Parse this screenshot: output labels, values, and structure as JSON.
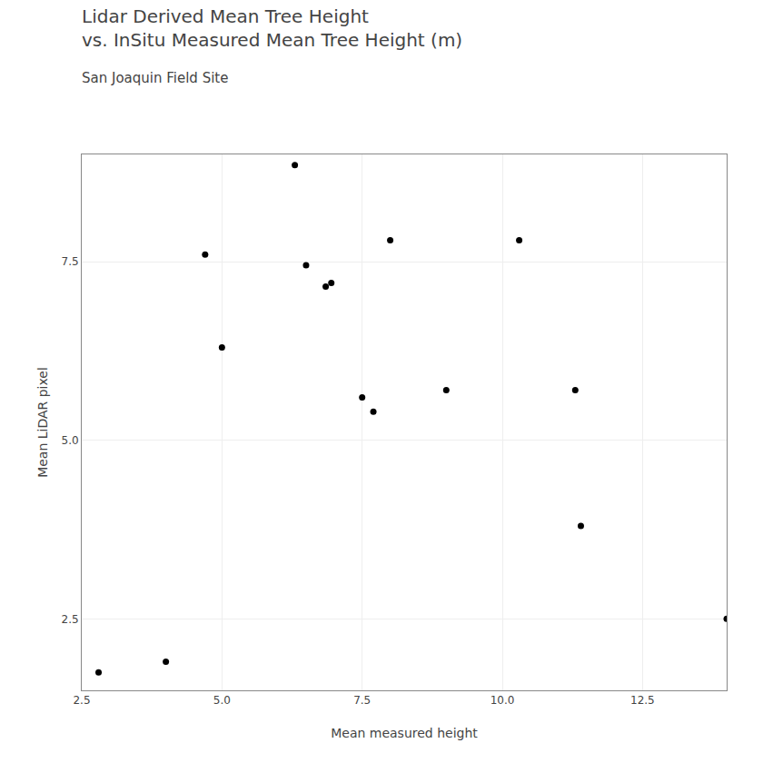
{
  "chart_data": {
    "type": "scatter",
    "title": [
      "Lidar Derived Mean Tree Height",
      "vs. InSitu Measured Mean Tree Height (m)"
    ],
    "subtitle": "San Joaquin Field Site",
    "xlabel": "Mean measured height",
    "ylabel": "Mean LiDAR pixel",
    "x": [
      2.8,
      4.0,
      4.7,
      5.0,
      6.3,
      6.5,
      6.85,
      6.95,
      7.5,
      7.7,
      8.0,
      9.0,
      10.3,
      11.3,
      11.4,
      14.0
    ],
    "values": [
      1.75,
      1.9,
      7.6,
      6.3,
      8.85,
      7.45,
      7.15,
      7.2,
      5.6,
      5.4,
      7.8,
      5.7,
      7.8,
      5.7,
      3.8,
      2.5
    ],
    "color": "#000000",
    "xlim": [
      2.5,
      14.0
    ],
    "ylim": [
      1.5,
      9.0
    ],
    "xticks": [
      2.5,
      {
        "value": 5.0,
        "label": "5.0"
      },
      7.5,
      {
        "value": 10.0,
        "label": "10.0"
      },
      12.5
    ],
    "yticks": [
      2.5,
      {
        "value": 5.0,
        "label": "5.0"
      },
      7.5
    ],
    "grid": true
  }
}
